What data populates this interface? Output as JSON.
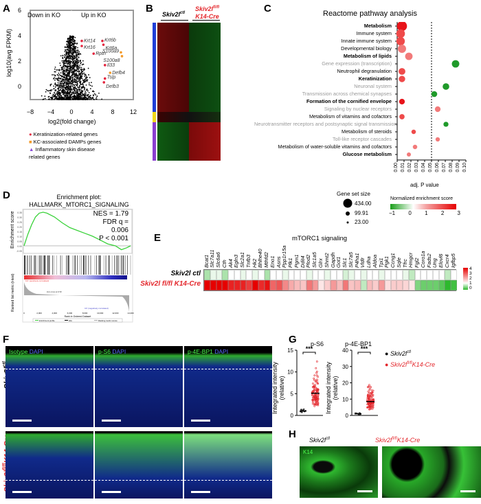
{
  "panels": {
    "A": "A",
    "B": "B",
    "C": "C",
    "D": "D",
    "E": "E",
    "F": "F",
    "G": "G",
    "H": "H"
  },
  "panelA": {
    "down": "Down in KO",
    "up": "Up in KO",
    "ylabel": "log10(avg FPKM)",
    "xlabel": "log2(fold change)",
    "xticks": [
      "−8",
      "−4",
      "0",
      "4",
      "8",
      "12"
    ],
    "yticks": [
      "6",
      "4",
      "2",
      "0"
    ],
    "genes": [
      "Krt14",
      "Krt16",
      "Krt6b",
      "Krt6a",
      "Rptn",
      "S100a9",
      "S100a8",
      "Il33",
      "Defb4",
      "Tslp",
      "Defb3"
    ],
    "legend": [
      "Keratinization-related genes",
      "KC-associated DAMPs genes",
      "Inflammatory skin disease related genes"
    ],
    "colors": {
      "keratinization": "#e3263f",
      "damps": "#f39a2a",
      "inflammatory": "#8a4bd6"
    }
  },
  "panelB": {
    "ctl": "Skiv2l",
    "ctl_sup": "ctl",
    "ko": "Skiv2l",
    "ko_sup": "fl/fl",
    "ko_line2": "K14-Cre"
  },
  "chart_data": [
    {
      "type": "scatter",
      "title": "Reactome pathway analysis",
      "xlabel": "adj. P value",
      "xlim": [
        0,
        0.1
      ],
      "xticks": [
        "0.00",
        "0.01",
        "0.02",
        "0.03",
        "0.04",
        "0.05",
        "0.06",
        "0.07",
        "0.08",
        "0.09",
        "0.10"
      ],
      "threshold": 0.05,
      "pathways": [
        {
          "name": "Metabolism",
          "p": 0.007,
          "nes": 2.6,
          "size": 434,
          "bold": true
        },
        {
          "name": "Immune system",
          "p": 0.005,
          "nes": 2.2,
          "size": 300,
          "bold": false
        },
        {
          "name": "Innate immune system",
          "p": 0.005,
          "nes": 2.3,
          "size": 280,
          "bold": false
        },
        {
          "name": "Developmental biology",
          "p": 0.007,
          "nes": 2.0,
          "size": 260,
          "bold": false
        },
        {
          "name": "Metabolism of lipids",
          "p": 0.017,
          "nes": 2.0,
          "size": 200,
          "bold": true
        },
        {
          "name": "Gene expression (transcription)",
          "p": 0.085,
          "nes": -1.5,
          "size": 200,
          "bold": false,
          "grey": true
        },
        {
          "name": "Neutrophil degranulation",
          "p": 0.007,
          "nes": 2.3,
          "size": 150,
          "bold": false
        },
        {
          "name": "Keratinization",
          "p": 0.007,
          "nes": 2.4,
          "size": 130,
          "bold": true
        },
        {
          "name": "Neuronal system",
          "p": 0.071,
          "nes": -1.5,
          "size": 140,
          "bold": false,
          "grey": true
        },
        {
          "name": "Transmission across chemical synapses",
          "p": 0.054,
          "nes": -1.6,
          "size": 100,
          "bold": false,
          "grey": true
        },
        {
          "name": "Formation of the cornified envelope",
          "p": 0.007,
          "nes": 2.9,
          "size": 90,
          "bold": true
        },
        {
          "name": "Signaling by nuclear receptors",
          "p": 0.059,
          "nes": 1.6,
          "size": 90,
          "bold": false,
          "grey": true
        },
        {
          "name": "Metabolism of vitamins and cofactors",
          "p": 0.007,
          "nes": 2.1,
          "size": 70,
          "bold": false
        },
        {
          "name": "Neurotransmitter receptors and postsynaptic signal transmission",
          "p": 0.071,
          "nes": -1.8,
          "size": 60,
          "bold": false,
          "grey": true
        },
        {
          "name": "Metabolism of steroids",
          "p": 0.024,
          "nes": 2.2,
          "size": 40,
          "bold": false
        },
        {
          "name": "Toll-like receptor cascades",
          "p": 0.059,
          "nes": 1.7,
          "size": 35,
          "bold": false,
          "grey": true
        },
        {
          "name": "Metabolism of water-soluble vitamins and cofactors",
          "p": 0.026,
          "nes": 1.9,
          "size": 40,
          "bold": false
        },
        {
          "name": "Glucose metabolism",
          "p": 0.017,
          "nes": 1.8,
          "size": 30,
          "bold": true
        }
      ],
      "size_legend": {
        "title": "Gene set size",
        "values": [
          "434.00",
          "99.91",
          "23.00"
        ]
      },
      "color_legend": {
        "title": "Normalized enrichment score",
        "ticks": [
          "−1",
          "0",
          "1",
          "2",
          "3"
        ]
      }
    },
    {
      "type": "line",
      "title": "Enrichment plot: HALLMARK_MTORC1_SIGNALING",
      "ylabel": "Enrichment score",
      "ylabel2": "Ranked list metric (t-test)",
      "xlabel": "Rank in Ordered Dataset",
      "yticks": [
        "0.35",
        "0.30",
        "0.25",
        "0.20",
        "0.15",
        "0.10",
        "0.05",
        "0.00",
        "-0.05"
      ],
      "xticks": [
        "0",
        "2,000",
        "4,000",
        "6,000",
        "8,000",
        "10,000",
        "12,000",
        "14,000"
      ],
      "x": [
        0,
        500,
        1000,
        1500,
        2000,
        2500,
        3000,
        4000,
        5000,
        6000,
        7000,
        8000,
        9000,
        10000,
        11000,
        12000,
        12800,
        13500,
        14000
      ],
      "y": [
        0,
        0.12,
        0.22,
        0.3,
        0.34,
        0.35,
        0.34,
        0.3,
        0.24,
        0.19,
        0.16,
        0.13,
        0.1,
        0.06,
        0.02,
        0,
        -0.04,
        -0.02,
        0.0
      ],
      "stats": [
        "NES = 1.79",
        "FDR q = 0.006",
        "P < 0.001"
      ],
      "annotations": [
        "KO' (positively correlated)",
        "Zero cross at 4718",
        "Ctl' (negatively correlated)"
      ],
      "legend": [
        "Enrichment profile",
        "Hits",
        "Ranking metric scores"
      ]
    },
    {
      "type": "heatmap",
      "title": "mTORC1 signaling",
      "genes": [
        "Bcat1",
        "Slc7a11",
        "Slc6a6",
        "Cth",
        "Ak4",
        "Egln3",
        "Slc2a1",
        "Tnfb3",
        "Hk2",
        "Bhlhe40",
        "Mthfd2",
        "Eno1",
        "Asns",
        "Ppp1r15a",
        "Plk1",
        "Pgm1",
        "Ddit4",
        "Plod2",
        "Slc1a5",
        "Glrx",
        "Shmt2",
        "Gapdh",
        "Got1",
        "Slc1",
        "Slc7a5",
        "P4ha1",
        "Vldlr",
        "Ldha",
        "Aldoa",
        "Tpi1",
        "Pgk1",
        "Ccng1",
        "Sqle",
        "Tfrc",
        "Hmgcr",
        "Fgl2",
        "Coro1a",
        "Fads2",
        "Ung",
        "Elovl6",
        "Cxcr4",
        "Igfbp5"
      ],
      "rows": [
        "Skiv2l ctl",
        "Skiv2l fl/fl K14-Cre"
      ],
      "ctl": [
        0.6,
        0.9,
        0.9,
        0.6,
        1,
        1,
        0.9,
        1,
        0.9,
        1,
        0.6,
        1,
        1,
        0.9,
        1,
        1,
        1,
        0.9,
        1,
        1,
        0.9,
        1,
        1,
        0.8,
        0.9,
        1,
        0.9,
        1,
        1,
        0.9,
        1,
        1,
        1,
        0.9,
        0.7,
        1,
        1,
        1,
        1,
        1,
        0.7,
        1
      ],
      "ko": [
        4,
        4,
        4,
        4,
        3.6,
        3.6,
        3.6,
        3.3,
        4,
        3.5,
        3.8,
        2.8,
        3,
        2.4,
        2,
        1.8,
        1.7,
        2.6,
        2.2,
        1.3,
        1.6,
        2.2,
        1.8,
        2.6,
        1.7,
        1.8,
        0.7,
        1.8,
        1.6,
        2.2,
        1.4,
        1.6,
        1.6,
        1.5,
        1.3,
        0.4,
        0.3,
        0.3,
        0.3,
        0.2,
        0,
        0.1
      ],
      "scale_ticks": [
        "4",
        "3",
        "2",
        "1",
        "0"
      ]
    },
    {
      "type": "scatter",
      "title": "p-S6",
      "ylabel": "Integrated intensity (relative)",
      "ylim": [
        0,
        15
      ],
      "yticks": [
        "15",
        "10",
        "5",
        "0"
      ],
      "groups": [
        "Skiv2l ctl",
        "Skiv2l fl/fl K14-Cre"
      ],
      "means": [
        1,
        5.1
      ],
      "sig": "***"
    },
    {
      "type": "scatter",
      "title": "p-4E-BP1",
      "ylabel": "Integrated intensity (relative)",
      "ylim": [
        0,
        40
      ],
      "yticks": [
        "40",
        "30",
        "20",
        "10",
        "0"
      ],
      "groups": [
        "Skiv2l ctl",
        "Skiv2l fl/fl K14-Cre"
      ],
      "means": [
        1,
        8.5
      ],
      "sig": "***"
    }
  ],
  "panelF": {
    "cols": [
      {
        "a": "Isotype",
        "b": "DAPI"
      },
      {
        "a": "p-S6",
        "b": "DAPI"
      },
      {
        "a": "p-4E-BP1",
        "b": "DAPI"
      }
    ],
    "rowctl": "Skiv2l",
    "rowctl_sup": "ctl",
    "rowko": "Skiv2l",
    "rowko_sup": "fl/fl",
    "rowko_tail": "K14-Cre"
  },
  "panelG": {
    "legend_ctl": "Skiv2l",
    "legend_ctl_sup": "ctl",
    "legend_ko": "Skiv2l",
    "legend_ko_sup": "fl/fl",
    "legend_ko_tail": "K14-Cre"
  },
  "panelH": {
    "ctl": "Skiv2l",
    "ctl_sup": "ctl",
    "ko": "Skiv2l",
    "ko_sup": "fl/fl",
    "ko_tail": "K14-Cre",
    "stain": "K14"
  }
}
